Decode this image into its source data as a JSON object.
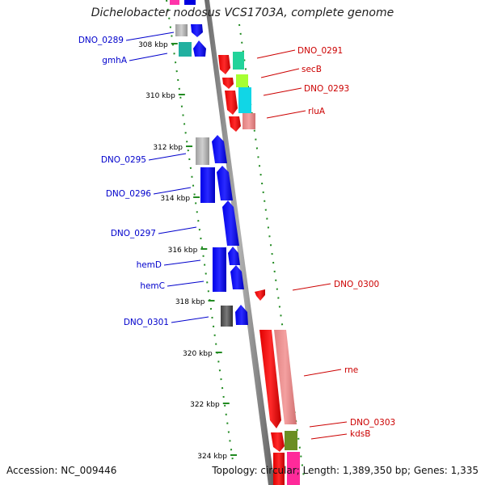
{
  "title": "Dichelobacter nodosus VCS1703A, complete genome",
  "footer": {
    "accession": "Accession: NC_009446",
    "summary": "Topology: circular; Length: 1,389,350 bp; Genes: 1,335"
  },
  "colors": {
    "left_label": "#0000cc",
    "right_label": "#cc0000",
    "backbone": "#808080",
    "tick": "#228b22"
  },
  "ruler": [
    {
      "label": "308 kbp"
    },
    {
      "label": "310 kbp"
    },
    {
      "label": "312 kbp"
    },
    {
      "label": "314 kbp"
    },
    {
      "label": "316 kbp"
    },
    {
      "label": "318 kbp"
    },
    {
      "label": "320 kbp"
    },
    {
      "label": "322 kbp"
    },
    {
      "label": "324 kbp"
    }
  ],
  "left_labels": [
    "DNO_0289",
    "gmhA",
    "DNO_0295",
    "DNO_0296",
    "DNO_0297",
    "hemD",
    "hemC",
    "DNO_0301"
  ],
  "right_labels": [
    "DNO_0291",
    "secB",
    "DNO_0293",
    "rluA",
    "DNO_0300",
    "rne",
    "DNO_0303",
    "kdsB"
  ]
}
